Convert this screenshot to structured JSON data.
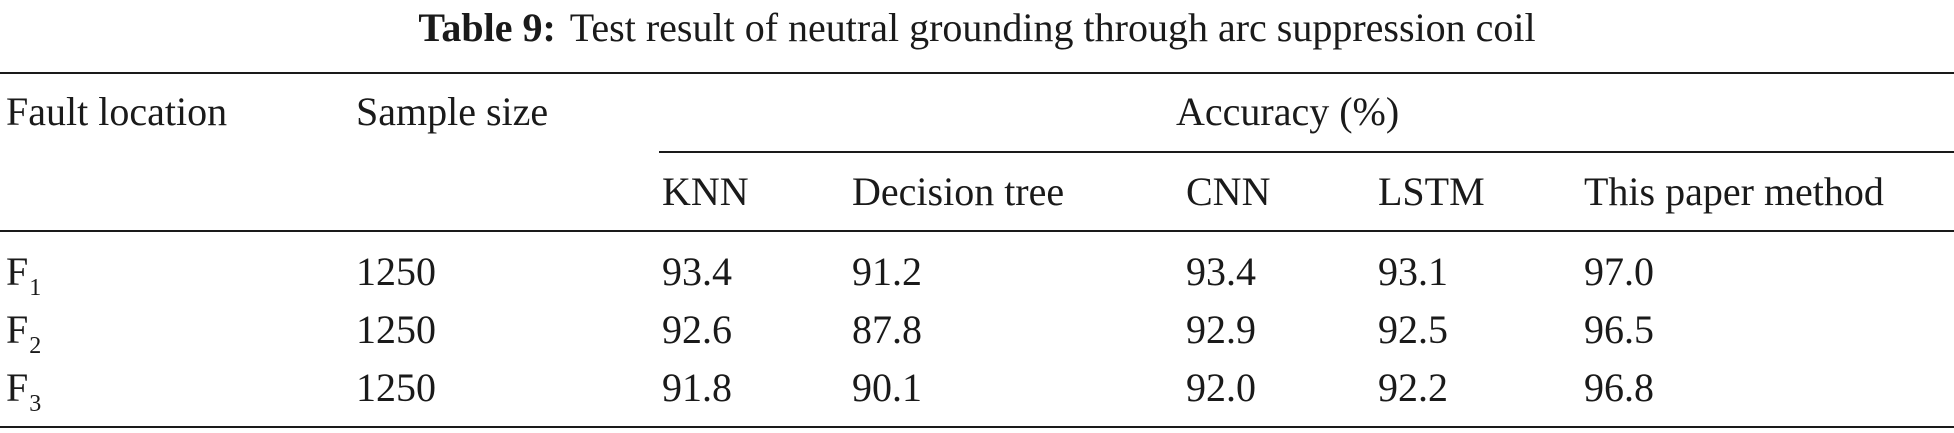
{
  "caption": {
    "label": "Table 9:",
    "text": "Test result of neutral grounding through arc suppression coil"
  },
  "headers": {
    "fault_location": "Fault location",
    "sample_size": "Sample size",
    "accuracy": "Accuracy (%)",
    "methods": [
      "KNN",
      "Decision tree",
      "CNN",
      "LSTM",
      "This paper method"
    ]
  },
  "rows": [
    {
      "loc_main": "F",
      "loc_sub": "1",
      "sample_size": "1250",
      "values": [
        "93.4",
        "91.2",
        "93.4",
        "93.1",
        "97.0"
      ]
    },
    {
      "loc_main": "F",
      "loc_sub": "2",
      "sample_size": "1250",
      "values": [
        "92.6",
        "87.8",
        "92.9",
        "92.5",
        "96.5"
      ]
    },
    {
      "loc_main": "F",
      "loc_sub": "3",
      "sample_size": "1250",
      "values": [
        "91.8",
        "90.1",
        "92.0",
        "92.2",
        "96.8"
      ]
    }
  ]
}
